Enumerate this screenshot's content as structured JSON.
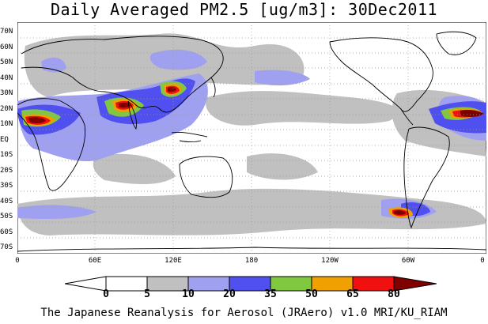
{
  "title": "Daily Averaged PM2.5 [ug/m3]: 30Dec2011",
  "footer": "The Japanese Reanalysis for Aerosol (JRAero) v1.0 MRI/KU_RIAM",
  "y_ticks": [
    "70N",
    "60N",
    "50N",
    "40N",
    "30N",
    "20N",
    "10N",
    "EQ",
    "10S",
    "20S",
    "30S",
    "40S",
    "50S",
    "60S",
    "70S"
  ],
  "x_ticks": [
    "0",
    "60E",
    "120E",
    "180",
    "120W",
    "60W",
    "0"
  ],
  "colorbar": {
    "labels": [
      "0",
      "5",
      "10",
      "20",
      "35",
      "50",
      "65",
      "80"
    ],
    "colors": [
      "#ffffff",
      "#c0c0c0",
      "#a0a0f0",
      "#5050f0",
      "#80c840",
      "#f0a000",
      "#f01010",
      "#800000"
    ]
  },
  "colors": {
    "gray": "#c0c0c0",
    "lightblue": "#a0a0f0",
    "blue": "#5050f0",
    "green": "#80c840",
    "orange": "#f0a000",
    "red": "#f01010",
    "darkred": "#800000"
  }
}
